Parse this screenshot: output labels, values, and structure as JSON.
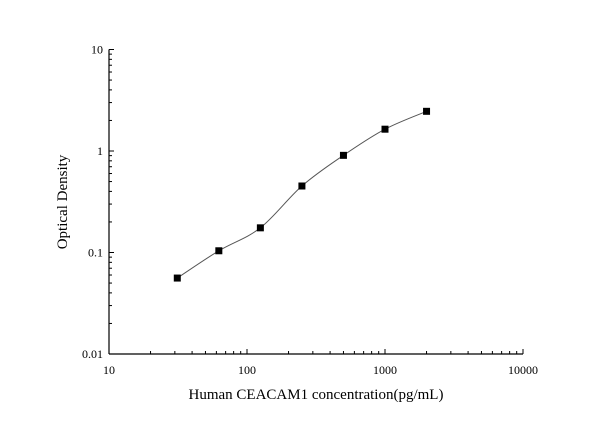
{
  "chart_data": {
    "type": "scatter",
    "title": "",
    "xlabel": "Human CEACAM1 concentration(pg/mL)",
    "ylabel": "Optical Density",
    "xscale": "log",
    "yscale": "log",
    "xlim": [
      10,
      10000
    ],
    "ylim": [
      0.01,
      10
    ],
    "xticks": [
      10,
      100,
      1000,
      10000
    ],
    "xtick_labels": [
      "10",
      "100",
      "1000",
      "10000"
    ],
    "yticks": [
      0.01,
      0.1,
      1,
      10
    ],
    "ytick_labels": [
      "0.01",
      "0.1",
      "1",
      "10"
    ],
    "grid": false,
    "marker": "square",
    "fit_curve": true,
    "color": "#000000",
    "curve_color": "#555555",
    "x": [
      31.25,
      62.5,
      125,
      250,
      500,
      1000,
      2000
    ],
    "y": [
      0.056,
      0.104,
      0.175,
      0.452,
      0.906,
      1.64,
      2.46
    ]
  }
}
